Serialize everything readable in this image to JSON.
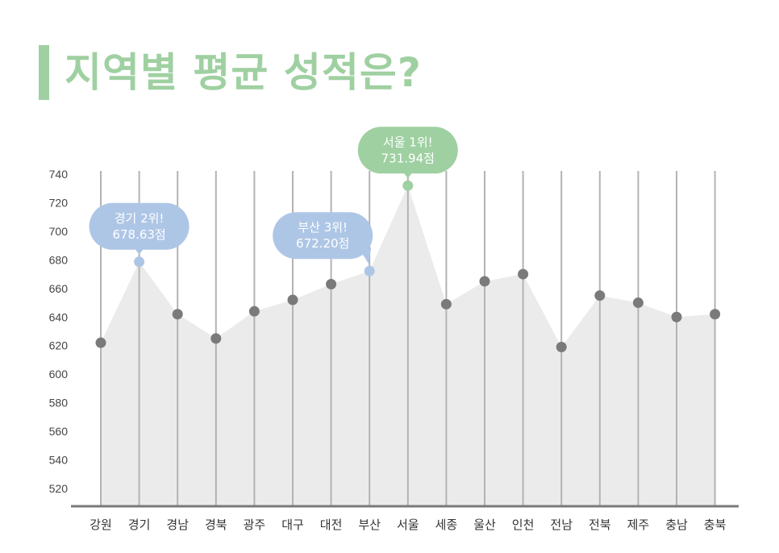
{
  "title": "지역별 평균 성적은?",
  "colors": {
    "accent": "#9fd0a1",
    "highlight_blue": "#aec6e6",
    "highlight_green": "#9fd0a1",
    "point": "#7a7a7a",
    "area": "#ebebeb",
    "highlight_label": "#e03c3c"
  },
  "chart_data": {
    "type": "area",
    "ylim": [
      510,
      740
    ],
    "yticks": [
      740,
      720,
      700,
      680,
      660,
      640,
      620,
      600,
      580,
      560,
      540,
      520
    ],
    "categories": [
      "강원",
      "경기",
      "경남",
      "경북",
      "광주",
      "대구",
      "대전",
      "부산",
      "서울",
      "세종",
      "울산",
      "인천",
      "전남",
      "전북",
      "제주",
      "충남",
      "충북"
    ],
    "values": [
      622,
      678.63,
      642,
      625,
      644,
      652,
      663,
      672.2,
      731.94,
      649,
      665,
      670,
      619,
      655,
      650,
      640,
      642
    ],
    "highlighted_categories": [
      "경기",
      "부산",
      "서울"
    ],
    "annotations": [
      {
        "category": "서울",
        "line1": "서울 1위!",
        "line2": "731.94점",
        "color": "#9fd0a1"
      },
      {
        "category": "경기",
        "line1": "경기 2위!",
        "line2": "678.63점",
        "color": "#aec6e6"
      },
      {
        "category": "부산",
        "line1": "부산 3위!",
        "line2": "672.20점",
        "color": "#aec6e6"
      }
    ],
    "grid": "vertical"
  }
}
